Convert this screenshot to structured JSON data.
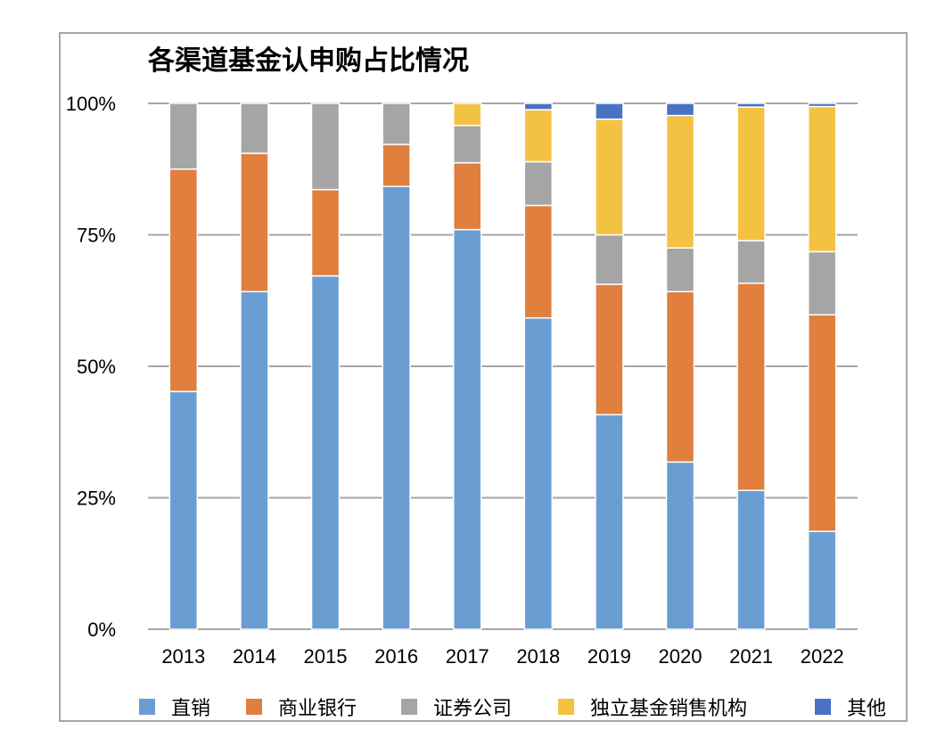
{
  "chart_data": {
    "type": "bar",
    "stacked": true,
    "title": "各渠道基金认申购占比情况",
    "xlabel": "",
    "ylabel": "",
    "ylim": [
      0,
      100
    ],
    "y_ticks": [
      0,
      25,
      50,
      75,
      100
    ],
    "y_tick_labels": [
      "0%",
      "25%",
      "50%",
      "75%",
      "100%"
    ],
    "grid": true,
    "legend_position": "bottom",
    "categories": [
      "2013",
      "2014",
      "2015",
      "2016",
      "2017",
      "2018",
      "2019",
      "2020",
      "2021",
      "2022"
    ],
    "series": [
      {
        "name": "直销",
        "color": "#6a9ed3",
        "values": [
          45.2,
          64.2,
          67.2,
          84.2,
          76.0,
          59.2,
          40.8,
          31.8,
          26.4,
          18.6
        ]
      },
      {
        "name": "商业银行",
        "color": "#e07f3e",
        "values": [
          42.3,
          26.3,
          16.4,
          8.0,
          12.7,
          21.4,
          24.8,
          32.4,
          39.4,
          41.2
        ]
      },
      {
        "name": "证券公司",
        "color": "#a5a5a5",
        "values": [
          12.5,
          9.5,
          16.4,
          7.8,
          7.1,
          8.3,
          9.4,
          8.3,
          8.1,
          12.0
        ]
      },
      {
        "name": "独立基金销售机构",
        "color": "#f4c242",
        "values": [
          0,
          0,
          0,
          0,
          4.2,
          9.9,
          22.0,
          25.2,
          25.4,
          27.6
        ]
      },
      {
        "name": "其他",
        "color": "#4a72c4",
        "values": [
          0,
          0,
          0,
          0,
          0,
          1.2,
          3.0,
          2.3,
          0.7,
          0.6
        ]
      }
    ]
  }
}
